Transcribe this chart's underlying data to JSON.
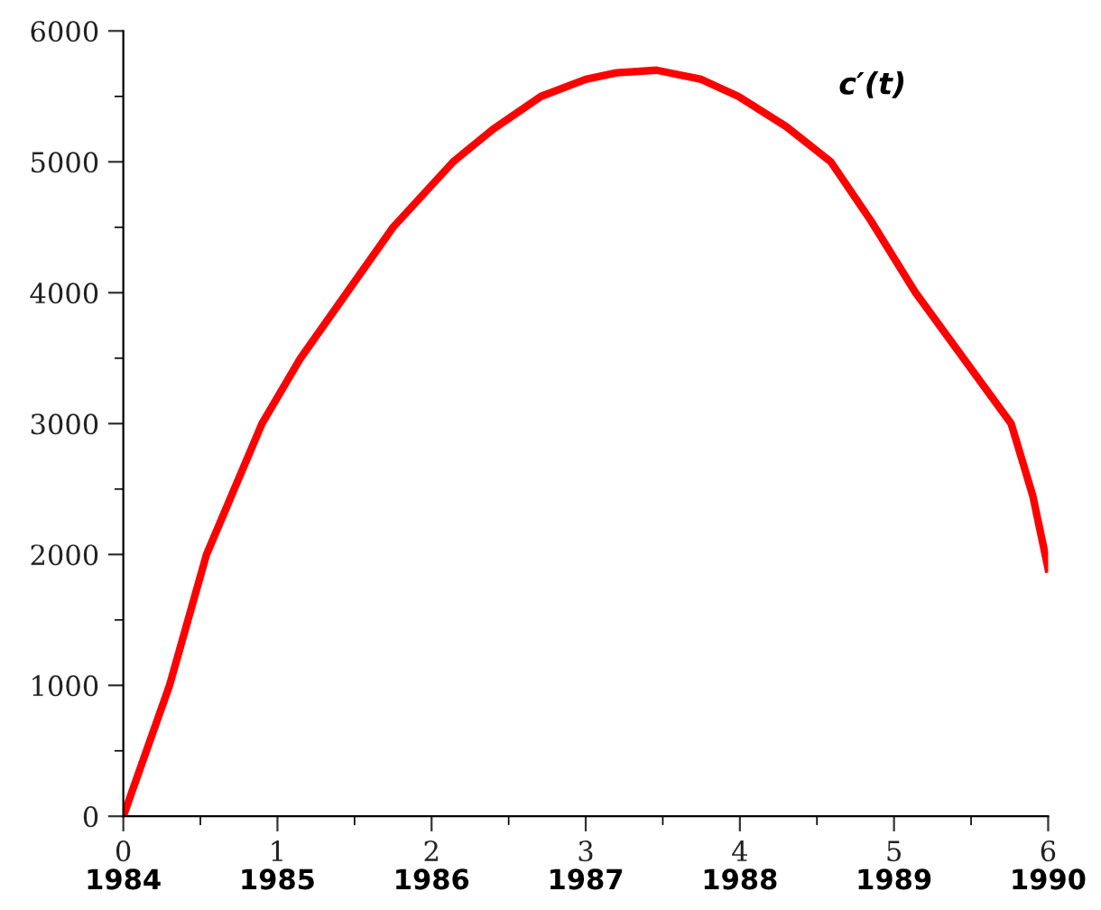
{
  "chart_data": {
    "type": "line",
    "x": [
      0,
      0.15,
      0.3,
      0.54,
      0.72,
      0.9,
      1.15,
      1.45,
      1.75,
      2.14,
      2.4,
      2.71,
      3.0,
      3.2,
      3.46,
      3.75,
      3.99,
      4.3,
      4.59,
      4.85,
      5.14,
      5.45,
      5.76,
      5.9,
      6
    ],
    "series": [
      {
        "color": "#ff0000",
        "values": [
          0,
          500,
          1000,
          2000,
          2500,
          3000,
          3500,
          4000,
          4500,
          5000,
          5250,
          5500,
          5630,
          5680,
          5700,
          5630,
          5500,
          5270,
          5000,
          4550,
          4000,
          3500,
          3000,
          2450,
          1890
        ]
      }
    ],
    "xlim": [
      0,
      6
    ],
    "ylim": [
      0,
      6000
    ],
    "xticks": [
      0,
      {
        "value": 0.5,
        "label": null
      },
      1,
      {
        "value": 1.5,
        "label": null
      },
      2,
      {
        "value": 2.5,
        "label": null
      },
      3,
      {
        "value": 3.5,
        "label": null
      },
      4,
      {
        "value": 4.5,
        "label": null
      },
      5,
      {
        "value": 5.5,
        "label": null
      },
      6
    ],
    "yticks": [
      0,
      {
        "value": 500,
        "label": null
      },
      1000,
      {
        "value": 1500,
        "label": null
      },
      2000,
      {
        "value": 2500,
        "label": null
      },
      3000,
      {
        "value": 3500,
        "label": null
      },
      4000,
      {
        "value": 4500,
        "label": null
      },
      5000,
      {
        "value": 5500,
        "label": null
      },
      6000
    ],
    "x2lim": [
      1984,
      1990
    ],
    "x2ticks": [
      1984,
      1985,
      1986,
      1987,
      1988,
      1989,
      1990
    ],
    "annotations": [
      "c′(t)"
    ],
    "grid": false,
    "legend": false,
    "marker": "none",
    "line_style": "solid"
  }
}
